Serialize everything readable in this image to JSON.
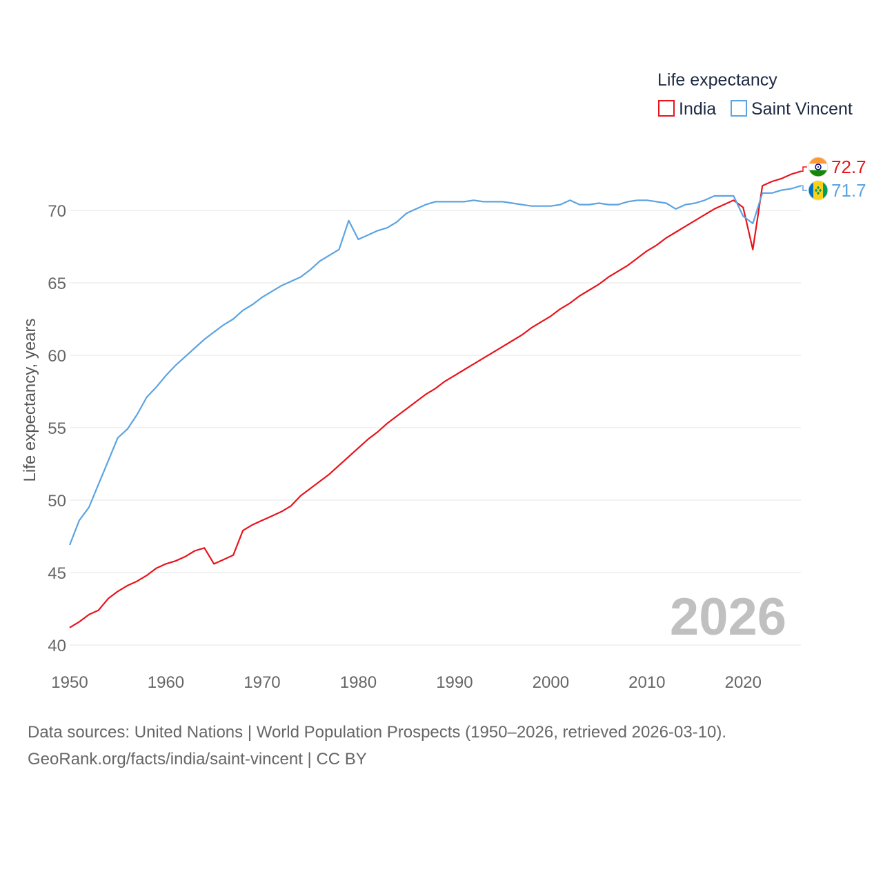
{
  "chart_data": {
    "type": "line",
    "title": "Life expectancy",
    "xlabel": "",
    "ylabel": "Life expectancy, years",
    "xlim": [
      1950,
      2026
    ],
    "ylim": [
      40,
      73
    ],
    "x_ticks": [
      "1950",
      "1960",
      "1970",
      "1980",
      "1990",
      "2000",
      "2010",
      "2020"
    ],
    "y_ticks": [
      "40",
      "45",
      "50",
      "55",
      "60",
      "65",
      "70"
    ],
    "grid": true,
    "legend_position": "top-right",
    "current_year_label": "2026",
    "x": [
      1950,
      1951,
      1952,
      1953,
      1954,
      1955,
      1956,
      1957,
      1958,
      1959,
      1960,
      1961,
      1962,
      1963,
      1964,
      1965,
      1966,
      1967,
      1968,
      1969,
      1970,
      1971,
      1972,
      1973,
      1974,
      1975,
      1976,
      1977,
      1978,
      1979,
      1980,
      1981,
      1982,
      1983,
      1984,
      1985,
      1986,
      1987,
      1988,
      1989,
      1990,
      1991,
      1992,
      1993,
      1994,
      1995,
      1996,
      1997,
      1998,
      1999,
      2000,
      2001,
      2002,
      2003,
      2004,
      2005,
      2006,
      2007,
      2008,
      2009,
      2010,
      2011,
      2012,
      2013,
      2014,
      2015,
      2016,
      2017,
      2018,
      2019,
      2020,
      2021,
      2022,
      2023,
      2024,
      2025,
      2026
    ],
    "series": [
      {
        "name": "India",
        "color": "#e8131b",
        "flag": "india-flag-icon",
        "end_label": "72.7",
        "values": [
          41.2,
          41.6,
          42.1,
          42.4,
          43.2,
          43.7,
          44.1,
          44.4,
          44.8,
          45.3,
          45.6,
          45.8,
          46.1,
          46.5,
          46.7,
          45.6,
          45.9,
          46.2,
          47.9,
          48.3,
          48.6,
          48.9,
          49.2,
          49.6,
          50.3,
          50.8,
          51.3,
          51.8,
          52.4,
          53.0,
          53.6,
          54.2,
          54.7,
          55.3,
          55.8,
          56.3,
          56.8,
          57.3,
          57.7,
          58.2,
          58.6,
          59.0,
          59.4,
          59.8,
          60.2,
          60.6,
          61.0,
          61.4,
          61.9,
          62.3,
          62.7,
          63.2,
          63.6,
          64.1,
          64.5,
          64.9,
          65.4,
          65.8,
          66.2,
          66.7,
          67.2,
          67.6,
          68.1,
          68.5,
          68.9,
          69.3,
          69.7,
          70.1,
          70.4,
          70.7,
          70.2,
          67.3,
          71.7,
          72.0,
          72.2,
          72.5,
          72.7
        ]
      },
      {
        "name": "Saint Vincent",
        "color": "#5ba3e3",
        "flag": "saint-vincent-flag-icon",
        "end_label": "71.7",
        "values": [
          46.9,
          48.6,
          49.5,
          51.1,
          52.7,
          54.3,
          54.9,
          55.9,
          57.1,
          57.8,
          58.6,
          59.3,
          59.9,
          60.5,
          61.1,
          61.6,
          62.1,
          62.5,
          63.1,
          63.5,
          64.0,
          64.4,
          64.8,
          65.1,
          65.4,
          65.9,
          66.5,
          66.9,
          67.3,
          69.3,
          68.0,
          68.3,
          68.6,
          68.8,
          69.2,
          69.8,
          70.1,
          70.4,
          70.6,
          70.6,
          70.6,
          70.6,
          70.7,
          70.6,
          70.6,
          70.6,
          70.5,
          70.4,
          70.3,
          70.3,
          70.3,
          70.4,
          70.7,
          70.4,
          70.4,
          70.5,
          70.4,
          70.4,
          70.6,
          70.7,
          70.7,
          70.6,
          70.5,
          70.1,
          70.4,
          70.5,
          70.7,
          71.0,
          71.0,
          71.0,
          69.6,
          69.1,
          71.2,
          71.2,
          71.4,
          71.5,
          71.7
        ]
      }
    ]
  },
  "source": {
    "line1": "Data sources: United Nations | World Population Prospects (1950–2026, retrieved 2026-03-10).",
    "line2": "GeoRank.org/facts/india/saint-vincent | CC BY"
  }
}
